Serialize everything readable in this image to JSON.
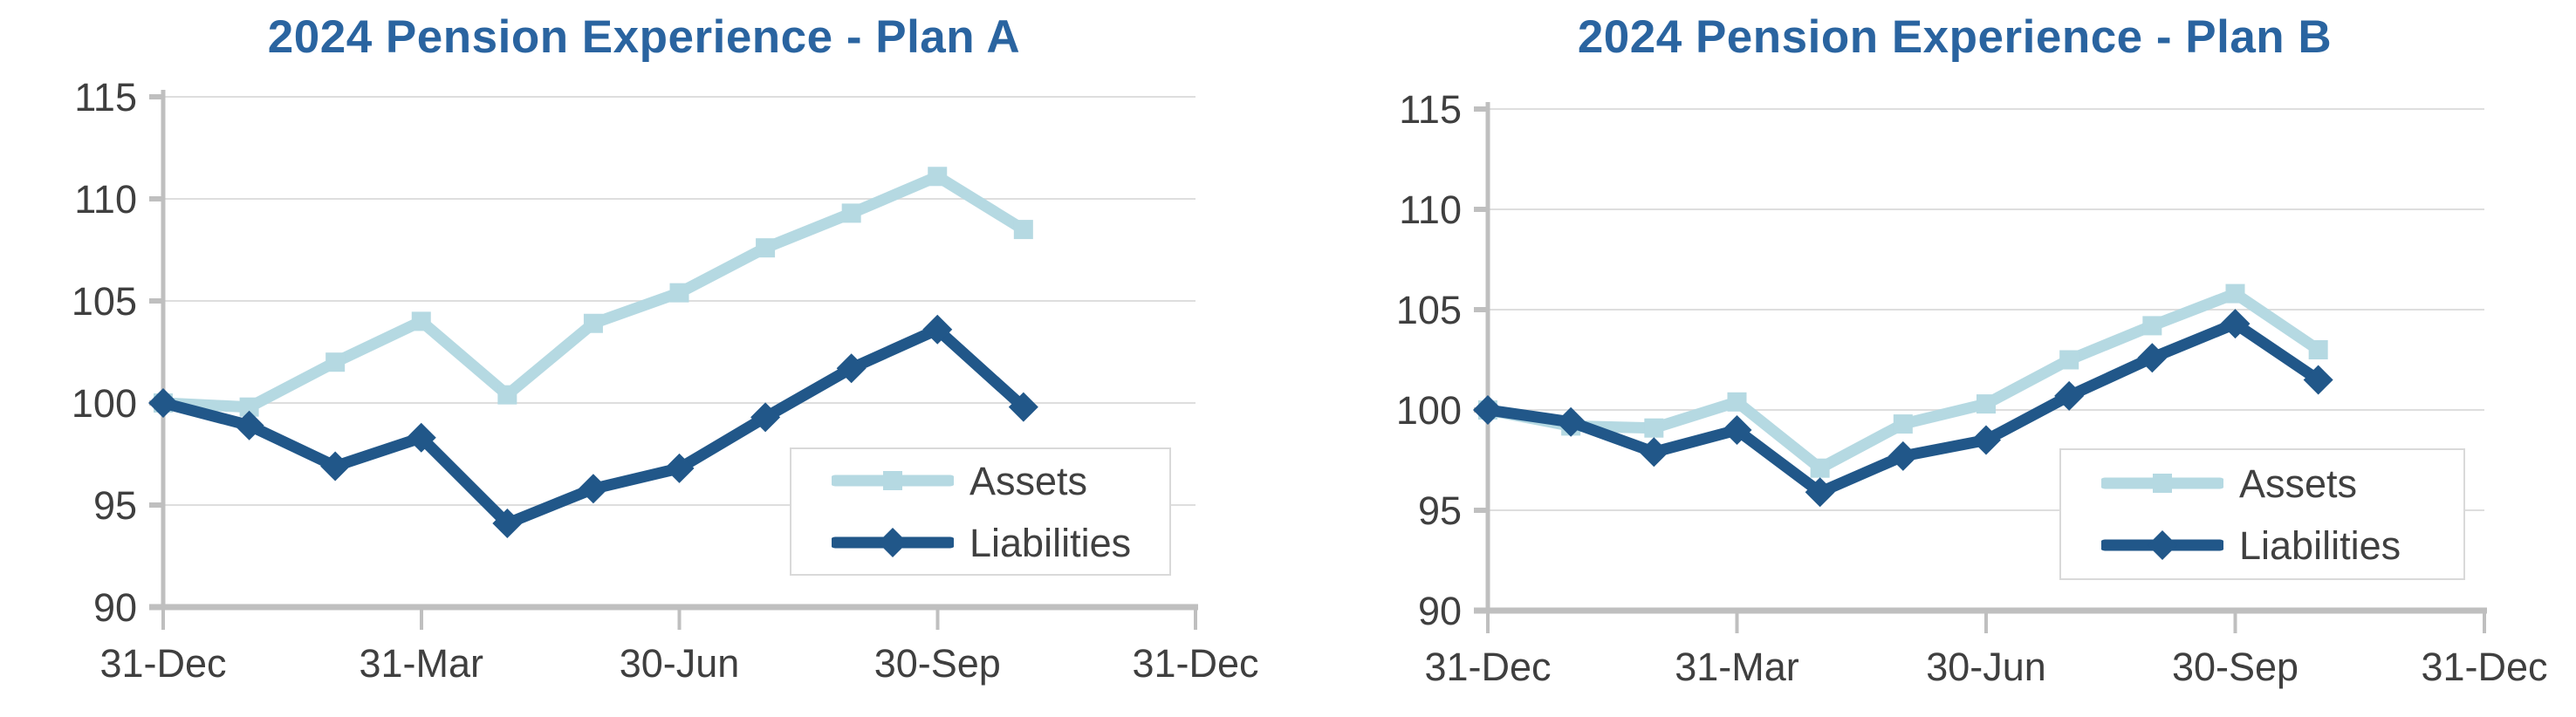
{
  "page": {
    "background": "#ffffff"
  },
  "colors": {
    "title_blue": "#2a64a0",
    "assets_light_blue": "#b5d9e2",
    "liabilities_dark_blue": "#215789",
    "axis_text_gray": "#3f3f3f",
    "gridline_gray": "#dedede",
    "axis_line_gray": "#bfbfbf",
    "legend_border_gray": "#d9d9d9",
    "legend_text_gray": "#404040"
  },
  "chart_data": [
    {
      "type": "line",
      "title": "2024 Pension Experience - Plan A",
      "x": [
        "31-Dec",
        "31-Jan",
        "28-Feb",
        "31-Mar",
        "30-Apr",
        "31-May",
        "30-Jun",
        "31-Jul",
        "31-Aug",
        "30-Sep",
        "31-Oct"
      ],
      "x_tick_labels": [
        "31-Dec",
        "31-Mar",
        "30-Jun",
        "30-Sep",
        "31-Dec"
      ],
      "y_ticks": [
        115,
        110,
        105,
        100,
        95,
        90
      ],
      "ylim": [
        90,
        115
      ],
      "grid": "horizontal",
      "legend_position": "inside-bottom-right",
      "series": [
        {
          "name": "Assets",
          "marker": "square",
          "color": "#b5d9e2",
          "values": [
            100.0,
            99.8,
            102.0,
            104.0,
            100.4,
            103.9,
            105.4,
            107.6,
            109.3,
            111.1,
            108.5
          ]
        },
        {
          "name": "Liabilities",
          "marker": "diamond",
          "color": "#215789",
          "values": [
            100.0,
            98.9,
            96.9,
            98.3,
            94.1,
            95.8,
            96.8,
            99.3,
            101.7,
            103.6,
            99.8
          ]
        }
      ]
    },
    {
      "type": "line",
      "title": "2024 Pension Experience - Plan B",
      "x": [
        "31-Dec",
        "31-Jan",
        "28-Feb",
        "31-Mar",
        "30-Apr",
        "31-May",
        "30-Jun",
        "31-Jul",
        "31-Aug",
        "30-Sep",
        "31-Oct"
      ],
      "x_tick_labels": [
        "31-Dec",
        "31-Mar",
        "30-Jun",
        "30-Sep",
        "31-Dec"
      ],
      "y_ticks": [
        115,
        110,
        105,
        100,
        95,
        90
      ],
      "ylim": [
        90,
        115
      ],
      "grid": "horizontal",
      "legend_position": "inside-bottom-right",
      "series": [
        {
          "name": "Assets",
          "marker": "square",
          "color": "#b5d9e2",
          "values": [
            100.0,
            99.2,
            99.1,
            100.4,
            97.1,
            99.3,
            100.3,
            102.5,
            104.2,
            105.8,
            103.0
          ]
        },
        {
          "name": "Liabilities",
          "marker": "diamond",
          "color": "#215789",
          "values": [
            100.0,
            99.4,
            97.9,
            99.0,
            95.9,
            97.7,
            98.5,
            100.7,
            102.6,
            104.3,
            101.5
          ]
        }
      ]
    }
  ]
}
